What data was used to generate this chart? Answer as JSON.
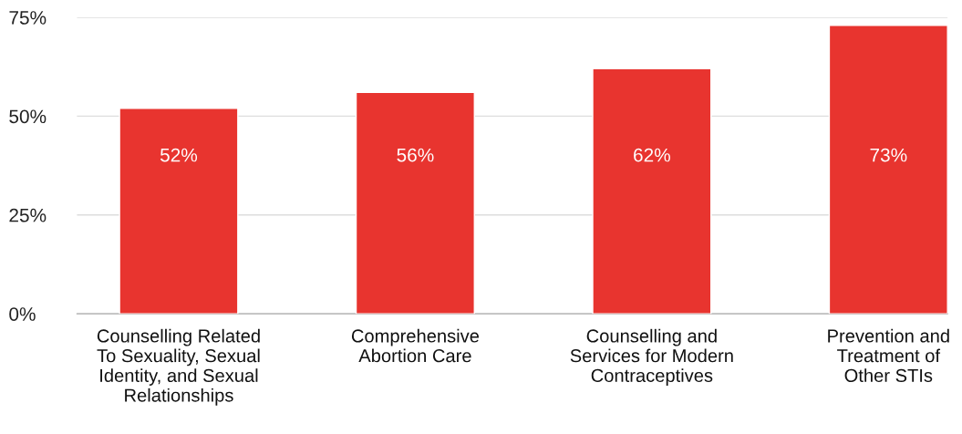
{
  "chart_data": {
    "type": "bar",
    "categories": [
      "Counselling Related\nTo Sexuality, Sexual\nIdentity, and Sexual\nRelationships",
      "Comprehensive\nAbortion Care",
      "Counselling and\nServices for Modern\nContraceptives",
      "Prevention and\nTreatment of\nOther STIs"
    ],
    "values": [
      52,
      56,
      62,
      73
    ],
    "value_labels": [
      "52%",
      "56%",
      "62%",
      "73%"
    ],
    "color": "#e8342f",
    "ylim": [
      0,
      75
    ],
    "yticks": [
      {
        "value": 0,
        "label": "0%"
      },
      {
        "value": 25,
        "label": "25%"
      },
      {
        "value": 50,
        "label": "50%"
      },
      {
        "value": 75,
        "label": "75%"
      }
    ],
    "grid": "y"
  }
}
